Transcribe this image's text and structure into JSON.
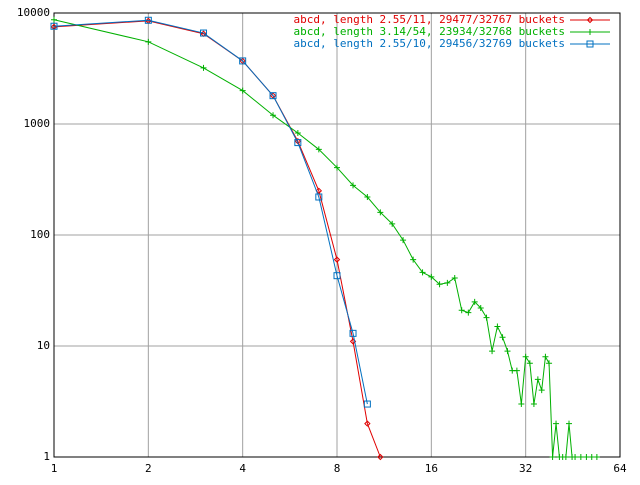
{
  "chart_data": {
    "type": "line",
    "logx": true,
    "logy": true,
    "grid": true,
    "xlim": [
      1,
      64
    ],
    "ylim": [
      1,
      10000
    ],
    "xticks": [
      1,
      2,
      4,
      8,
      16,
      32,
      64
    ],
    "yticks": [
      1,
      10,
      100,
      1000,
      10000
    ],
    "series": [
      {
        "name": "abcd, length 2.55/11, 29477/32767 buckets",
        "color": "#e00000",
        "marker": "diamond",
        "x": [
          1,
          2,
          3,
          4,
          5,
          6,
          7,
          8,
          9,
          10,
          11
        ],
        "values": [
          7500,
          8500,
          6500,
          3700,
          1800,
          700,
          250,
          60,
          11,
          2,
          1
        ]
      },
      {
        "name": "abcd, length 3.14/54, 23934/32768 buckets",
        "color": "#00b000",
        "marker": "plus",
        "x": [
          1,
          2,
          3,
          4,
          5,
          6,
          7,
          8,
          9,
          10,
          11,
          12,
          13,
          14,
          15,
          16,
          17,
          18,
          19,
          20,
          21,
          22,
          23,
          24,
          25,
          26,
          27,
          28,
          29,
          30,
          31,
          32,
          33,
          34,
          35,
          36,
          37,
          38,
          39,
          40,
          41,
          42,
          43,
          44,
          45,
          46,
          48,
          50,
          52,
          54
        ],
        "values": [
          8700,
          5500,
          3200,
          2000,
          1200,
          830,
          590,
          405,
          280,
          220,
          160,
          126,
          90,
          60,
          46,
          42,
          36,
          37,
          41,
          21,
          20,
          25,
          22,
          18,
          9,
          15,
          12,
          9,
          6,
          6,
          3,
          8,
          7,
          3,
          5,
          4,
          8,
          7,
          1,
          2,
          1,
          1,
          1,
          2,
          1,
          1,
          1,
          1,
          1,
          1
        ]
      },
      {
        "name": "abcd, length 2.55/10, 29456/32769 buckets",
        "color": "#0070c0",
        "marker": "square",
        "x": [
          1,
          2,
          3,
          4,
          5,
          6,
          7,
          8,
          9,
          10
        ],
        "values": [
          7600,
          8600,
          6600,
          3700,
          1800,
          680,
          220,
          43,
          13,
          3
        ]
      }
    ]
  }
}
